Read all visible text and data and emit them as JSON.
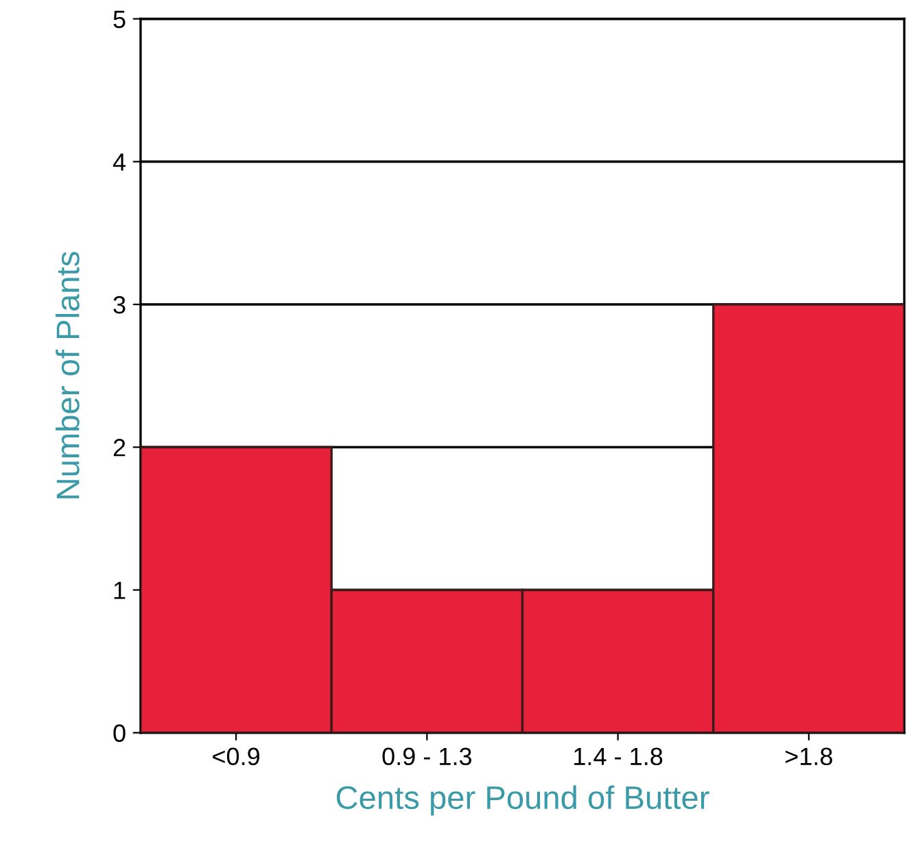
{
  "chart_data": {
    "type": "bar",
    "xlabel": "Cents per Pound of Butter",
    "ylabel": "Number of Plants",
    "categories": [
      "<0.9",
      "0.9 - 1.3",
      "1.4 - 1.8",
      ">1.8"
    ],
    "values": [
      2,
      1,
      1,
      3
    ],
    "color": "#e8213a",
    "ylim": [
      0,
      5
    ],
    "yticks": [
      0,
      1,
      2,
      3,
      4,
      5
    ],
    "grid": "y",
    "legend": false
  }
}
